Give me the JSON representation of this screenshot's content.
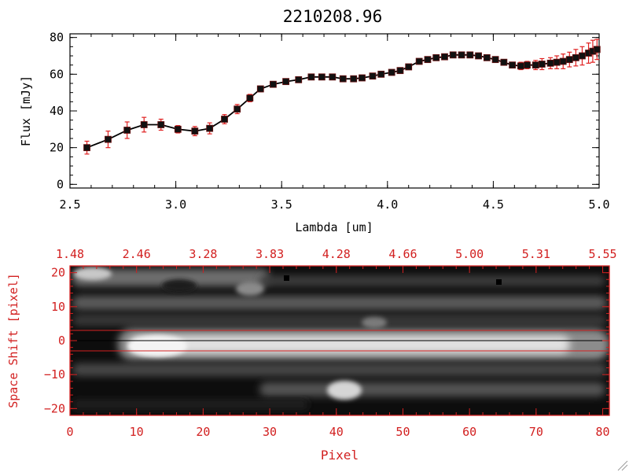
{
  "colors": {
    "axis_top": "#000000",
    "axis_bottom": "#d22020",
    "errorbar": "#e02020",
    "marker": "#111111",
    "background": "#ffffff"
  },
  "chart_data": [
    {
      "type": "line",
      "title": "2210208.96",
      "xlabel": "Lambda [um]",
      "ylabel": "Flux [mJy]",
      "xlim": [
        2.5,
        5.0
      ],
      "ylim": [
        -2,
        82
      ],
      "xticks": [
        2.5,
        3.0,
        3.5,
        4.0,
        4.5,
        5.0
      ],
      "xtick_labels": [
        "2.5",
        "3.0",
        "3.5",
        "4.0",
        "4.5",
        "5.0"
      ],
      "yticks": [
        0,
        20,
        40,
        60,
        80
      ],
      "ytick_labels": [
        "0",
        "20",
        "40",
        "60",
        "80"
      ],
      "grid": false,
      "series": [
        {
          "x": [
            2.58,
            2.68,
            2.77,
            2.85,
            2.93,
            3.01,
            3.09,
            3.16,
            3.23,
            3.29,
            3.35,
            3.4,
            3.46,
            3.52,
            3.58,
            3.64,
            3.69,
            3.74,
            3.79,
            3.84,
            3.88,
            3.93,
            3.97,
            4.02,
            4.06,
            4.1,
            4.15,
            4.19,
            4.23,
            4.27,
            4.31,
            4.35,
            4.39,
            4.43,
            4.47,
            4.51,
            4.55,
            4.59,
            4.63,
            4.66,
            4.7,
            4.73,
            4.77,
            4.8,
            4.83,
            4.86,
            4.89,
            4.92,
            4.95,
            4.97,
            4.99
          ],
          "y": [
            20,
            24.5,
            29.5,
            32.5,
            32.5,
            30,
            29,
            30.5,
            35.5,
            41,
            47,
            52,
            54.5,
            56,
            57,
            58.5,
            58.5,
            58.5,
            57.5,
            57.5,
            58,
            59,
            60,
            61,
            62,
            64,
            67,
            68,
            69,
            69.5,
            70.5,
            70.5,
            70.5,
            70,
            69,
            68,
            66.5,
            65,
            64.5,
            65,
            65,
            65.5,
            66,
            66.5,
            67,
            68,
            69,
            70,
            71.5,
            72.5,
            73.5
          ],
          "yerr": [
            3.5,
            4.5,
            4.5,
            4,
            3,
            2,
            2.5,
            3,
            2.5,
            2.5,
            2,
            1.5,
            1,
            1,
            1,
            1,
            1,
            1,
            1,
            1,
            1,
            1,
            1,
            1,
            1,
            1,
            1,
            1,
            1,
            1,
            1,
            1,
            1,
            1,
            1,
            1,
            1.5,
            1.5,
            2,
            2,
            2.5,
            3,
            3,
            3.5,
            4,
            4,
            4.5,
            5,
            5.5,
            6,
            5.5
          ]
        }
      ]
    },
    {
      "type": "heatmap",
      "xlabel": "Pixel",
      "ylabel": "Space Shift [pixel]",
      "xlim": [
        0,
        81
      ],
      "ylim": [
        -22,
        22
      ],
      "xticks": [
        0,
        10,
        20,
        30,
        40,
        50,
        60,
        70,
        80
      ],
      "xtick_labels": [
        "0",
        "10",
        "20",
        "30",
        "40",
        "50",
        "60",
        "70",
        "80"
      ],
      "yticks": [
        -20,
        -10,
        0,
        10,
        20
      ],
      "ytick_labels": [
        "−20",
        "−10",
        "0",
        "10",
        "20"
      ],
      "top_axis_labels": [
        "1.48",
        "2.46",
        "3.28",
        "3.83",
        "4.28",
        "4.66",
        "5.00",
        "5.31",
        "5.55"
      ],
      "overlay_lines_y": [
        3,
        0,
        -3
      ],
      "grid": false
    }
  ]
}
